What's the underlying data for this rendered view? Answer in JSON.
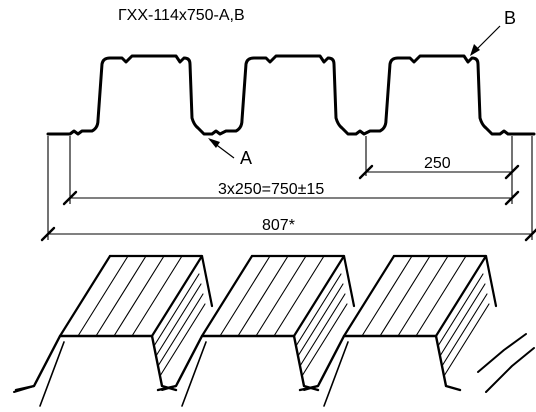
{
  "drawing": {
    "title": "ГХХ-114х750-А,В",
    "label_a": "А",
    "label_b": "В",
    "dim_pitch": "250",
    "dim_span": "3х250=750±15",
    "dim_total": "807*"
  }
}
